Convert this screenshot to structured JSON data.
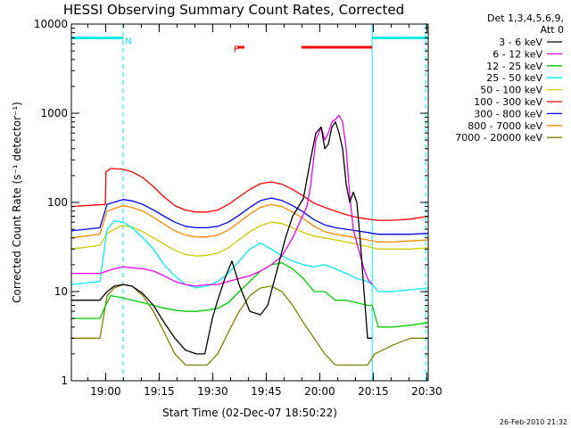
{
  "chart_data": {
    "type": "line",
    "title": "HESSI Observing Summary Count Rates, Corrected",
    "xlabel": "Start Time (02-Dec-07 18:50:22)",
    "ylabel": "Corrected Count Rate (s⁻¹ detector⁻¹)",
    "x_unit": "minutes after 18:50:22",
    "xlim": [
      0,
      100
    ],
    "ylim": [
      1,
      10000
    ],
    "y_scale": "log",
    "x_ticks": [
      {
        "v": 9.6,
        "label": "19:00"
      },
      {
        "v": 24.6,
        "label": "19:15"
      },
      {
        "v": 39.6,
        "label": "19:30"
      },
      {
        "v": 54.6,
        "label": "19:45"
      },
      {
        "v": 69.6,
        "label": "20:00"
      },
      {
        "v": 84.6,
        "label": "20:15"
      },
      {
        "v": 99.6,
        "label": "20:30"
      }
    ],
    "y_ticks": [
      {
        "v": 1,
        "label": "1"
      },
      {
        "v": 10,
        "label": "10"
      },
      {
        "v": 100,
        "label": "100"
      },
      {
        "v": 1000,
        "label": "1000"
      },
      {
        "v": 10000,
        "label": "10000"
      }
    ],
    "legend_header": [
      "Det 1,3,4,5,6,9,",
      "Att 0"
    ],
    "series": [
      {
        "name": "3 - 6 keV",
        "color": "#000000",
        "x": [
          0,
          8,
          10,
          12,
          14.5,
          17,
          20,
          23,
          26,
          29,
          32,
          35,
          37.4,
          39.5,
          41,
          43,
          45,
          47,
          50,
          53,
          55,
          57,
          60,
          62,
          65,
          67,
          68.5,
          70,
          71,
          72,
          73,
          74,
          75,
          76,
          77,
          78,
          79,
          80,
          81,
          82,
          83,
          84.3
        ],
        "y": [
          8,
          8,
          10,
          11.5,
          12,
          11.5,
          9.5,
          7,
          4.5,
          3,
          2.2,
          2,
          2,
          5,
          8,
          14,
          22,
          12,
          6,
          5.5,
          7,
          14,
          40,
          70,
          110,
          300,
          600,
          700,
          400,
          450,
          700,
          800,
          600,
          400,
          160,
          100,
          130,
          100,
          35,
          10,
          3,
          3
        ]
      },
      {
        "name": "6 - 12 keV",
        "color": "#ee00ee",
        "x": [
          0,
          8,
          10,
          12,
          14.5,
          17,
          20,
          23,
          26,
          29,
          32,
          35,
          38,
          41,
          44,
          47,
          50,
          53,
          56,
          59,
          62,
          64,
          66,
          67,
          68.5,
          70,
          71,
          72,
          73,
          74,
          75,
          76,
          77,
          78,
          79,
          80,
          81,
          82,
          83,
          84.3
        ],
        "y": [
          16,
          16,
          17,
          18,
          19,
          18.5,
          18,
          17,
          15,
          13,
          12,
          11.5,
          12,
          12,
          13,
          14,
          15,
          17,
          20,
          25,
          40,
          60,
          90,
          150,
          500,
          700,
          500,
          600,
          800,
          850,
          950,
          800,
          400,
          120,
          50,
          35,
          25,
          18,
          14,
          12
        ]
      },
      {
        "name": "12 - 25 keV",
        "color": "#00cc00",
        "x": [
          0,
          8,
          9.6,
          11,
          14.5,
          17,
          20,
          23,
          26,
          29,
          32,
          35,
          38,
          41,
          44,
          47,
          50,
          53,
          56,
          59,
          62,
          65,
          68,
          71,
          74,
          77,
          80,
          83,
          84.3,
          86,
          90,
          95,
          100
        ],
        "y": [
          5,
          5,
          7,
          9,
          8.5,
          8,
          7.5,
          7,
          6.5,
          6.2,
          6,
          6,
          6.2,
          6.5,
          7.5,
          10,
          13,
          17,
          20,
          21,
          18,
          14,
          10,
          10,
          8,
          8,
          7.5,
          7,
          7,
          4,
          4,
          4.2,
          4.5
        ]
      },
      {
        "name": "25 - 50 keV",
        "color": "#00eeee",
        "x": [
          0,
          8,
          10,
          12,
          14.5,
          17,
          20,
          23,
          26,
          29,
          32,
          35,
          38,
          41,
          44,
          47,
          50,
          53,
          56,
          59,
          62,
          65,
          68,
          71,
          74,
          77,
          80,
          83,
          84.3,
          86,
          90,
          95,
          100
        ],
        "y": [
          12,
          13,
          50,
          62,
          60,
          52,
          40,
          30,
          20,
          15,
          12,
          11,
          11.5,
          13,
          16,
          22,
          30,
          35,
          30,
          25,
          22,
          20,
          19,
          20,
          18,
          16,
          14,
          13,
          12,
          10,
          10,
          10.5,
          11
        ]
      },
      {
        "name": "50 - 100 keV",
        "color": "#cccc00",
        "x": [
          0,
          8,
          10,
          14,
          17,
          20,
          23,
          26,
          29,
          32,
          35,
          38,
          41,
          44,
          47,
          50,
          53,
          56,
          59,
          62,
          65,
          68,
          71,
          74,
          77,
          80,
          83,
          84.3,
          86,
          90,
          95,
          100
        ],
        "y": [
          30,
          33,
          45,
          55,
          53,
          47,
          40,
          34,
          29,
          26,
          25,
          25.5,
          27,
          31,
          38,
          47,
          55,
          60,
          58,
          52,
          46,
          42,
          40,
          38,
          36,
          34,
          32,
          31,
          30,
          30,
          30,
          31
        ]
      },
      {
        "name": "100 - 300 keV",
        "color": "#ff0000",
        "x": [
          0,
          9.5,
          9.7,
          11,
          14.5,
          17,
          20,
          23,
          26,
          29,
          32,
          35,
          38,
          41,
          44,
          47,
          50,
          53,
          56,
          59,
          62,
          65,
          68,
          71,
          74,
          77,
          80,
          83,
          84.3,
          86,
          90,
          95,
          100
        ],
        "y": [
          90,
          95,
          220,
          240,
          235,
          220,
          190,
          150,
          115,
          92,
          82,
          78,
          78,
          82,
          95,
          115,
          140,
          162,
          170,
          160,
          140,
          118,
          98,
          88,
          80,
          73,
          68,
          65,
          64,
          63,
          63,
          65,
          70
        ]
      },
      {
        "name": "300 - 800 keV",
        "color": "#0000ee",
        "x": [
          0,
          8,
          10,
          14.5,
          17,
          20,
          23,
          26,
          29,
          32,
          35,
          38,
          41,
          44,
          47,
          50,
          53,
          56,
          59,
          62,
          65,
          68,
          71,
          74,
          77,
          80,
          83,
          84.3,
          86,
          90,
          95,
          100
        ],
        "y": [
          48,
          52,
          95,
          108,
          104,
          95,
          82,
          70,
          60,
          54,
          52,
          52,
          54,
          60,
          72,
          88,
          105,
          112,
          105,
          92,
          78,
          64,
          56,
          52,
          50,
          48,
          46,
          45,
          44,
          44,
          44,
          45
        ]
      },
      {
        "name": "800 - 7000 keV",
        "color": "#ff8800",
        "x": [
          0,
          8,
          10,
          14.5,
          17,
          20,
          23,
          26,
          29,
          32,
          35,
          38,
          41,
          44,
          47,
          50,
          53,
          56,
          59,
          62,
          65,
          68,
          71,
          74,
          77,
          80,
          83,
          84.3,
          86,
          90,
          95,
          100
        ],
        "y": [
          40,
          44,
          80,
          92,
          88,
          80,
          68,
          57,
          48,
          43,
          41,
          41,
          43,
          49,
          60,
          74,
          88,
          95,
          90,
          78,
          66,
          54,
          47,
          44,
          42,
          40,
          38,
          37,
          36,
          36,
          37,
          38
        ]
      },
      {
        "name": "7000 - 20000 keV",
        "color": "#808000",
        "x": [
          0,
          8,
          10,
          12,
          14.5,
          17,
          20,
          23,
          26,
          29,
          32,
          35,
          38,
          41,
          44,
          47,
          50,
          53,
          56,
          59,
          62,
          65,
          68,
          71,
          74,
          77,
          80,
          83,
          85,
          90,
          95,
          100
        ],
        "y": [
          3,
          3,
          9,
          11,
          12,
          11.5,
          9,
          6,
          3.5,
          2,
          1.5,
          1.5,
          1.5,
          2,
          3.5,
          6,
          9,
          11,
          11.5,
          10,
          7,
          4.5,
          3,
          2,
          1.5,
          1.5,
          1.5,
          1.5,
          2,
          2.5,
          3,
          3
        ]
      }
    ],
    "annotations": [
      {
        "text": "N",
        "color": "#00eeee",
        "x": 16,
        "y": 6500
      },
      {
        "text": "F",
        "color": "#ff0000",
        "x": 46.2,
        "y": 5300
      }
    ],
    "state_bars": [
      {
        "name": "night-bar",
        "color": "#00eeee",
        "x0": 0,
        "x1": 14.5,
        "y": 7000
      },
      {
        "name": "night-bar",
        "color": "#00eeee",
        "x0": 84.3,
        "x1": 100,
        "y": 7000
      },
      {
        "name": "flare-flag-bar",
        "color": "#ff0000",
        "x0": 46.5,
        "x1": 48.5,
        "y": 5500
      },
      {
        "name": "flare-flag-bar",
        "color": "#ff0000",
        "x0": 64.5,
        "x1": 84.3,
        "y": 5500
      }
    ],
    "vertical_lines": [
      {
        "name": "night-boundary",
        "x": 14.5,
        "color": "#00eeee",
        "dashed": true
      },
      {
        "name": "night-boundary",
        "x": 84.3,
        "color": "#00eeee",
        "dashed": false
      },
      {
        "name": "night-boundary",
        "x": 99.3,
        "color": "#00eeee",
        "dashed": true
      }
    ]
  },
  "footer": {
    "timestamp": "26-Feb-2010 21:32"
  }
}
